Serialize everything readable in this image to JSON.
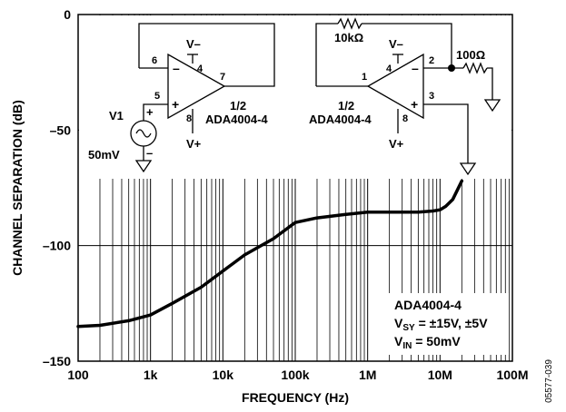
{
  "chart_data": {
    "type": "line",
    "title": "",
    "xlabel": "FREQUENCY (Hz)",
    "ylabel": "CHANNEL SEPARATION (dB)",
    "x_scale": "log",
    "xlim": [
      100,
      100000000
    ],
    "ylim": [
      -150,
      0
    ],
    "x_ticks": [
      {
        "value": 100,
        "label": "100"
      },
      {
        "value": 1000,
        "label": "1k"
      },
      {
        "value": 10000,
        "label": "10k"
      },
      {
        "value": 100000,
        "label": "100k"
      },
      {
        "value": 1000000,
        "label": "1M"
      },
      {
        "value": 10000000,
        "label": "10M"
      },
      {
        "value": 100000000,
        "label": "100M"
      }
    ],
    "y_ticks": [
      {
        "value": 0,
        "label": "0"
      },
      {
        "value": -50,
        "label": "–50"
      },
      {
        "value": -100,
        "label": "–100"
      },
      {
        "value": -150,
        "label": "–150"
      }
    ],
    "grid": true,
    "series": [
      {
        "name": "",
        "color": "#000000",
        "x": [
          100,
          200,
          500,
          1000,
          2000,
          5000,
          10000,
          20000,
          50000,
          100000,
          200000,
          500000,
          1000000,
          2000000,
          5000000,
          8000000,
          10000000,
          12000000,
          15000000,
          20000000
        ],
        "y": [
          -135,
          -134.5,
          -132.5,
          -130,
          -125,
          -118,
          -111,
          -104,
          -97,
          -90,
          -88,
          -86.5,
          -85.5,
          -85.5,
          -85.5,
          -85,
          -84.5,
          -83,
          -80,
          -72
        ]
      }
    ],
    "annotations": {
      "conditions_box": {
        "line1": "ADA4004-4",
        "line2_main": "V",
        "line2_sub": "SY",
        "line2_rest": " = ±15V, ±5V",
        "line3_main": "V",
        "line3_sub": "IN",
        "line3_rest": " = 50mV"
      },
      "figure_code": "05577-039"
    },
    "circuit": {
      "left_amp": {
        "pins": [
          "6",
          "4",
          "7",
          "5",
          "8"
        ],
        "minus": "–",
        "plus": "+",
        "rail_neg": "V–",
        "rail_pos": "V+",
        "label_fraction": "1/2",
        "label_part": "ADA4004-4"
      },
      "source": {
        "name": "V1",
        "value": "50mV",
        "plus": "+",
        "minus": "–"
      },
      "right_amp": {
        "pins": [
          "1",
          "4",
          "2",
          "3",
          "8"
        ],
        "minus": "–",
        "plus": "+",
        "rail_neg": "V–",
        "rail_pos": "V+",
        "label_fraction": "1/2",
        "label_part": "ADA4004-4"
      },
      "feedback_resistor": "10kΩ",
      "input_resistor": "100Ω"
    }
  }
}
